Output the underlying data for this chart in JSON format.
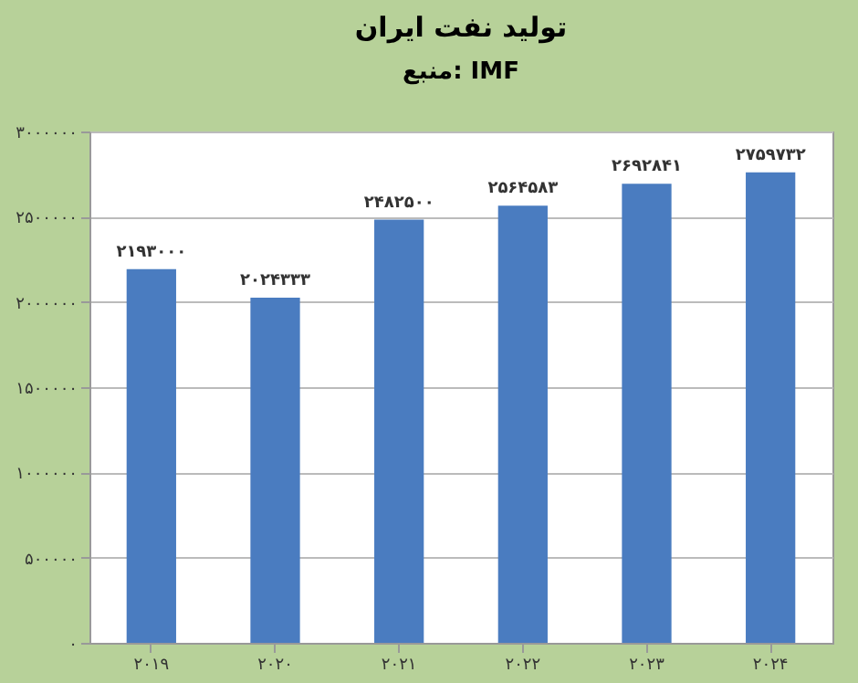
{
  "chart_data": {
    "type": "bar",
    "title": "تولید نفت ایران",
    "subtitle": "منبع: IMF",
    "categories": [
      "۲۰۱۹",
      "۲۰۲۰",
      "۲۰۲۱",
      "۲۰۲۲",
      "۲۰۲۳",
      "۲۰۲۴"
    ],
    "series": [
      {
        "color": "#4a7cc0",
        "values": [
          2193000,
          2024333,
          2482500,
          2564583,
          2692841,
          2759732
        ],
        "value_labels": [
          "۲۱۹۳۰۰۰",
          "۲۰۲۴۳۳۳",
          "۲۴۸۲۵۰۰",
          "۲۵۶۴۵۸۳",
          "۲۶۹۲۸۴۱",
          "۲۷۵۹۷۳۲"
        ]
      }
    ],
    "ylim": [
      0,
      3000000
    ],
    "yticks": [
      {
        "value": 0,
        "label": "۰"
      },
      {
        "value": 500000,
        "label": "۵۰۰۰۰۰"
      },
      {
        "value": 1000000,
        "label": "۱۰۰۰۰۰۰"
      },
      {
        "value": 1500000,
        "label": "۱۵۰۰۰۰۰"
      },
      {
        "value": 2000000,
        "label": "۲۰۰۰۰۰۰"
      },
      {
        "value": 2500000,
        "label": "۲۵۰۰۰۰۰"
      },
      {
        "value": 3000000,
        "label": "۳۰۰۰۰۰۰"
      }
    ],
    "grid": "y"
  }
}
